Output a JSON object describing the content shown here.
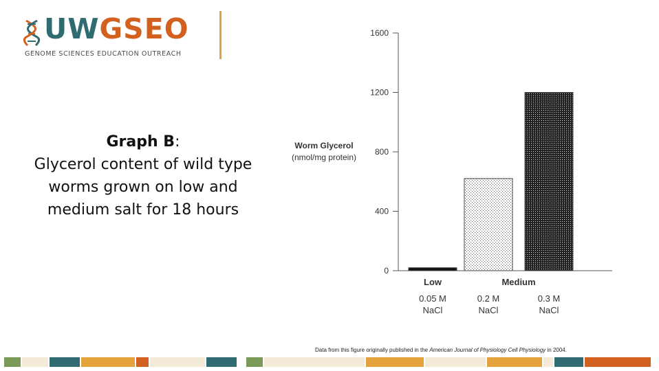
{
  "logo": {
    "name_a": "UW",
    "name_b": "GSEO",
    "tagline": "GENOME SCIENCES EDUCATION OUTREACH"
  },
  "caption": {
    "label": "Graph B",
    "separator": ":",
    "text": "Glycerol content of wild type worms grown on low and medium salt for 18 hours"
  },
  "source": {
    "prefix": "Data from this figure originally published in the ",
    "journal": "American Journal of Physiology  Cell Physiology",
    "suffix": " in 2004."
  },
  "colors": {
    "teal": "#2f6b70",
    "orange": "#d2611f",
    "gold": "#e3a23b",
    "olive": "#7a9a5a",
    "cream": "#f3ead7"
  },
  "chart_data": {
    "type": "bar",
    "ylabel_line1": "Worm Glycerol",
    "ylabel_line2": "(nmol/mg protein)",
    "ylim": [
      0,
      1600
    ],
    "yticks": [
      0,
      400,
      800,
      1200,
      1600
    ],
    "categories": [
      "0.05 M NaCl",
      "0.2 M NaCl",
      "0.3 M NaCl"
    ],
    "cat_line1": [
      "0.05 M",
      "0.2 M",
      "0.3 M"
    ],
    "cat_line2": [
      "NaCl",
      "NaCl",
      "NaCl"
    ],
    "values": [
      20,
      620,
      1200
    ],
    "groups": [
      {
        "label": "Low",
        "members": [
          0
        ]
      },
      {
        "label": "Medium",
        "members": [
          1,
          2
        ]
      }
    ]
  }
}
